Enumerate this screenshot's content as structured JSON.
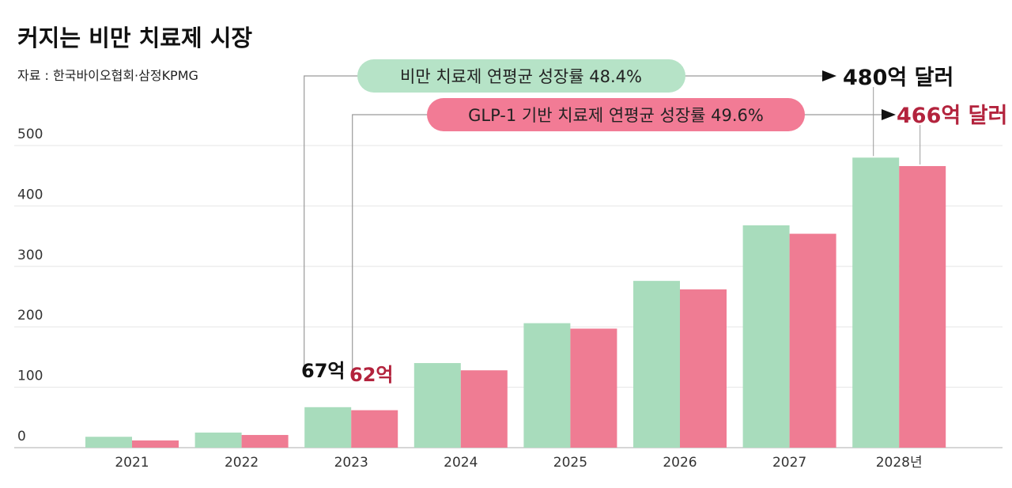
{
  "chart_data": {
    "type": "bar",
    "title": "커지는 비만 치료제 시장",
    "source": "자료 : 한국바이오협회·삼정KPMG",
    "categories": [
      "2021",
      "2022",
      "2023",
      "2024",
      "2025",
      "2026",
      "2027",
      "2028년"
    ],
    "series": [
      {
        "name": "비만 치료제",
        "color": "#a8dcbc",
        "values": [
          18,
          25,
          67,
          140,
          206,
          276,
          368,
          480
        ]
      },
      {
        "name": "GLP-1 기반 치료제",
        "color": "#ef7c93",
        "values": [
          12,
          21,
          62,
          128,
          197,
          262,
          354,
          466
        ]
      }
    ],
    "ylim": [
      0,
      500
    ],
    "yticks": [
      0,
      100,
      200,
      300,
      400,
      500
    ],
    "grid": true,
    "annotations": {
      "growth_1": "비만 치료제 연평균 성장률 48.4%",
      "growth_2": "GLP-1 기반 치료제 연평균 성장률 49.6%",
      "start_1": "67억",
      "start_2": "62억",
      "end_1": "480억 달러",
      "end_2": "466억 달러"
    },
    "colors": {
      "pill_1": "#b6e3c7",
      "pill_2": "#f27b95",
      "label_1": "#111111",
      "label_2": "#b3233d"
    }
  }
}
